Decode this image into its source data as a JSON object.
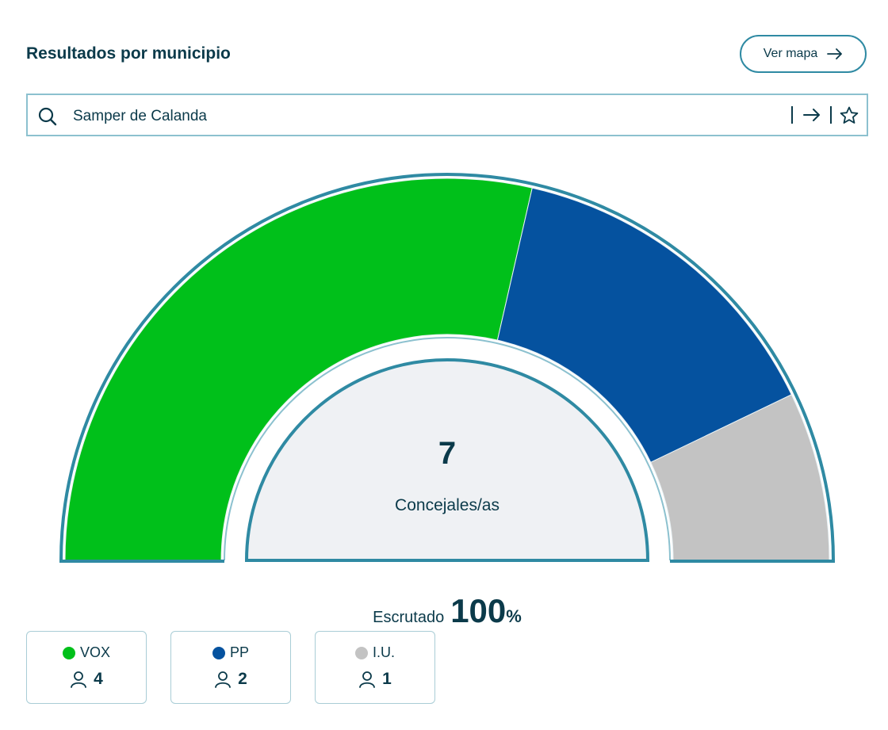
{
  "header": {
    "title": "Resultados por municipio",
    "map_button_label": "Ver mapa"
  },
  "search": {
    "value": "Samper de Calanda"
  },
  "colors": {
    "accent": "#2f8aa3",
    "text": "#0b3a4a",
    "vox": "#00c01a",
    "pp": "#05529f",
    "iu": "#c3c3c3",
    "center_fill": "#eff1f4"
  },
  "chart_data": {
    "type": "pie",
    "style": "semicircle",
    "categories": [
      "VOX",
      "PP",
      "I.U."
    ],
    "values": [
      4,
      2,
      1
    ],
    "colors": [
      "#00c01a",
      "#05529f",
      "#c3c3c3"
    ],
    "total": 7,
    "total_label": "Concejales/as"
  },
  "scrutiny": {
    "label": "Escrutado",
    "value": "100",
    "unit": "%"
  },
  "parties": [
    {
      "name": "VOX",
      "seats": "4",
      "color": "#00c01a"
    },
    {
      "name": "PP",
      "seats": "2",
      "color": "#05529f"
    },
    {
      "name": "I.U.",
      "seats": "1",
      "color": "#c3c3c3"
    }
  ],
  "icons": {
    "search": "search-icon",
    "go": "arrow-right-icon",
    "favorite": "star-icon",
    "seats": "person-icon"
  }
}
